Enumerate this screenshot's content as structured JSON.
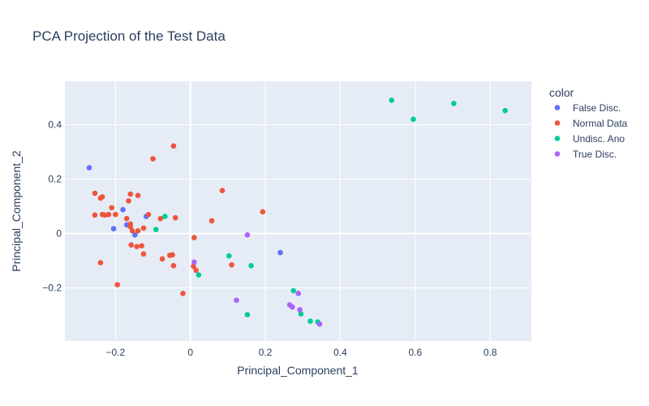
{
  "chart_data": {
    "type": "scatter",
    "title": "PCA Projection of the Test Data",
    "xlabel": "Principal_Component_1",
    "ylabel": "Principal_Component_2",
    "xlim": [
      -0.335,
      0.91
    ],
    "ylim": [
      -0.395,
      0.56
    ],
    "xticks": [
      -0.2,
      0,
      0.2,
      0.4,
      0.6,
      0.8
    ],
    "xtick_labels": [
      "−0.2",
      "0",
      "0.2",
      "0.4",
      "0.6",
      "0.8"
    ],
    "yticks": [
      -0.2,
      0,
      0.2,
      0.4
    ],
    "ytick_labels": [
      "−0.2",
      "0",
      "0.2",
      "0.4"
    ],
    "grid": true,
    "legend_title": "color",
    "legend_position": "right",
    "background": "#e5ecf6",
    "series": [
      {
        "name": "False Disc.",
        "color": "#636efa",
        "points": [
          [
            -0.27,
            0.242
          ],
          [
            -0.18,
            0.088
          ],
          [
            -0.205,
            0.018
          ],
          [
            -0.17,
            0.032
          ],
          [
            -0.148,
            -0.005
          ],
          [
            -0.118,
            0.063
          ],
          [
            0.24,
            -0.07
          ]
        ]
      },
      {
        "name": "Normal Data",
        "color": "#ef553b",
        "points": [
          [
            -0.045,
            0.322
          ],
          [
            -0.1,
            0.275
          ],
          [
            0.085,
            0.158
          ],
          [
            -0.255,
            0.148
          ],
          [
            -0.16,
            0.145
          ],
          [
            -0.14,
            0.14
          ],
          [
            -0.235,
            0.135
          ],
          [
            -0.24,
            0.13
          ],
          [
            -0.165,
            0.12
          ],
          [
            -0.21,
            0.095
          ],
          [
            0.193,
            0.08
          ],
          [
            -0.255,
            0.068
          ],
          [
            -0.235,
            0.07
          ],
          [
            -0.228,
            0.068
          ],
          [
            -0.218,
            0.07
          ],
          [
            -0.2,
            0.07
          ],
          [
            -0.112,
            0.07
          ],
          [
            -0.17,
            0.055
          ],
          [
            -0.08,
            0.055
          ],
          [
            -0.04,
            0.058
          ],
          [
            0.057,
            0.047
          ],
          [
            -0.16,
            0.035
          ],
          [
            -0.16,
            0.025
          ],
          [
            -0.125,
            0.02
          ],
          [
            -0.155,
            0.01
          ],
          [
            -0.14,
            0.01
          ],
          [
            0.01,
            -0.015
          ],
          [
            -0.158,
            -0.042
          ],
          [
            -0.143,
            -0.048
          ],
          [
            -0.13,
            -0.045
          ],
          [
            -0.125,
            -0.075
          ],
          [
            -0.055,
            -0.08
          ],
          [
            -0.048,
            -0.078
          ],
          [
            -0.075,
            -0.093
          ],
          [
            -0.24,
            -0.107
          ],
          [
            -0.045,
            -0.118
          ],
          [
            0.008,
            -0.12
          ],
          [
            0.11,
            -0.115
          ],
          [
            0.015,
            -0.135
          ],
          [
            -0.195,
            -0.188
          ],
          [
            -0.02,
            -0.22
          ]
        ]
      },
      {
        "name": "Undisc. Ano",
        "color": "#00cc96",
        "points": [
          [
            0.537,
            0.49
          ],
          [
            0.703,
            0.478
          ],
          [
            0.84,
            0.452
          ],
          [
            0.595,
            0.42
          ],
          [
            -0.068,
            0.063
          ],
          [
            -0.092,
            0.015
          ],
          [
            0.103,
            -0.082
          ],
          [
            0.162,
            -0.118
          ],
          [
            0.022,
            -0.152
          ],
          [
            0.275,
            -0.21
          ],
          [
            0.295,
            -0.295
          ],
          [
            0.152,
            -0.298
          ],
          [
            0.32,
            -0.322
          ],
          [
            0.34,
            -0.325
          ]
        ]
      },
      {
        "name": "True Disc.",
        "color": "#ab63fa",
        "points": [
          [
            0.152,
            -0.005
          ],
          [
            0.01,
            -0.105
          ],
          [
            0.288,
            -0.22
          ],
          [
            0.123,
            -0.245
          ],
          [
            0.265,
            -0.262
          ],
          [
            0.272,
            -0.27
          ],
          [
            0.292,
            -0.28
          ],
          [
            0.345,
            -0.333
          ]
        ]
      }
    ]
  }
}
